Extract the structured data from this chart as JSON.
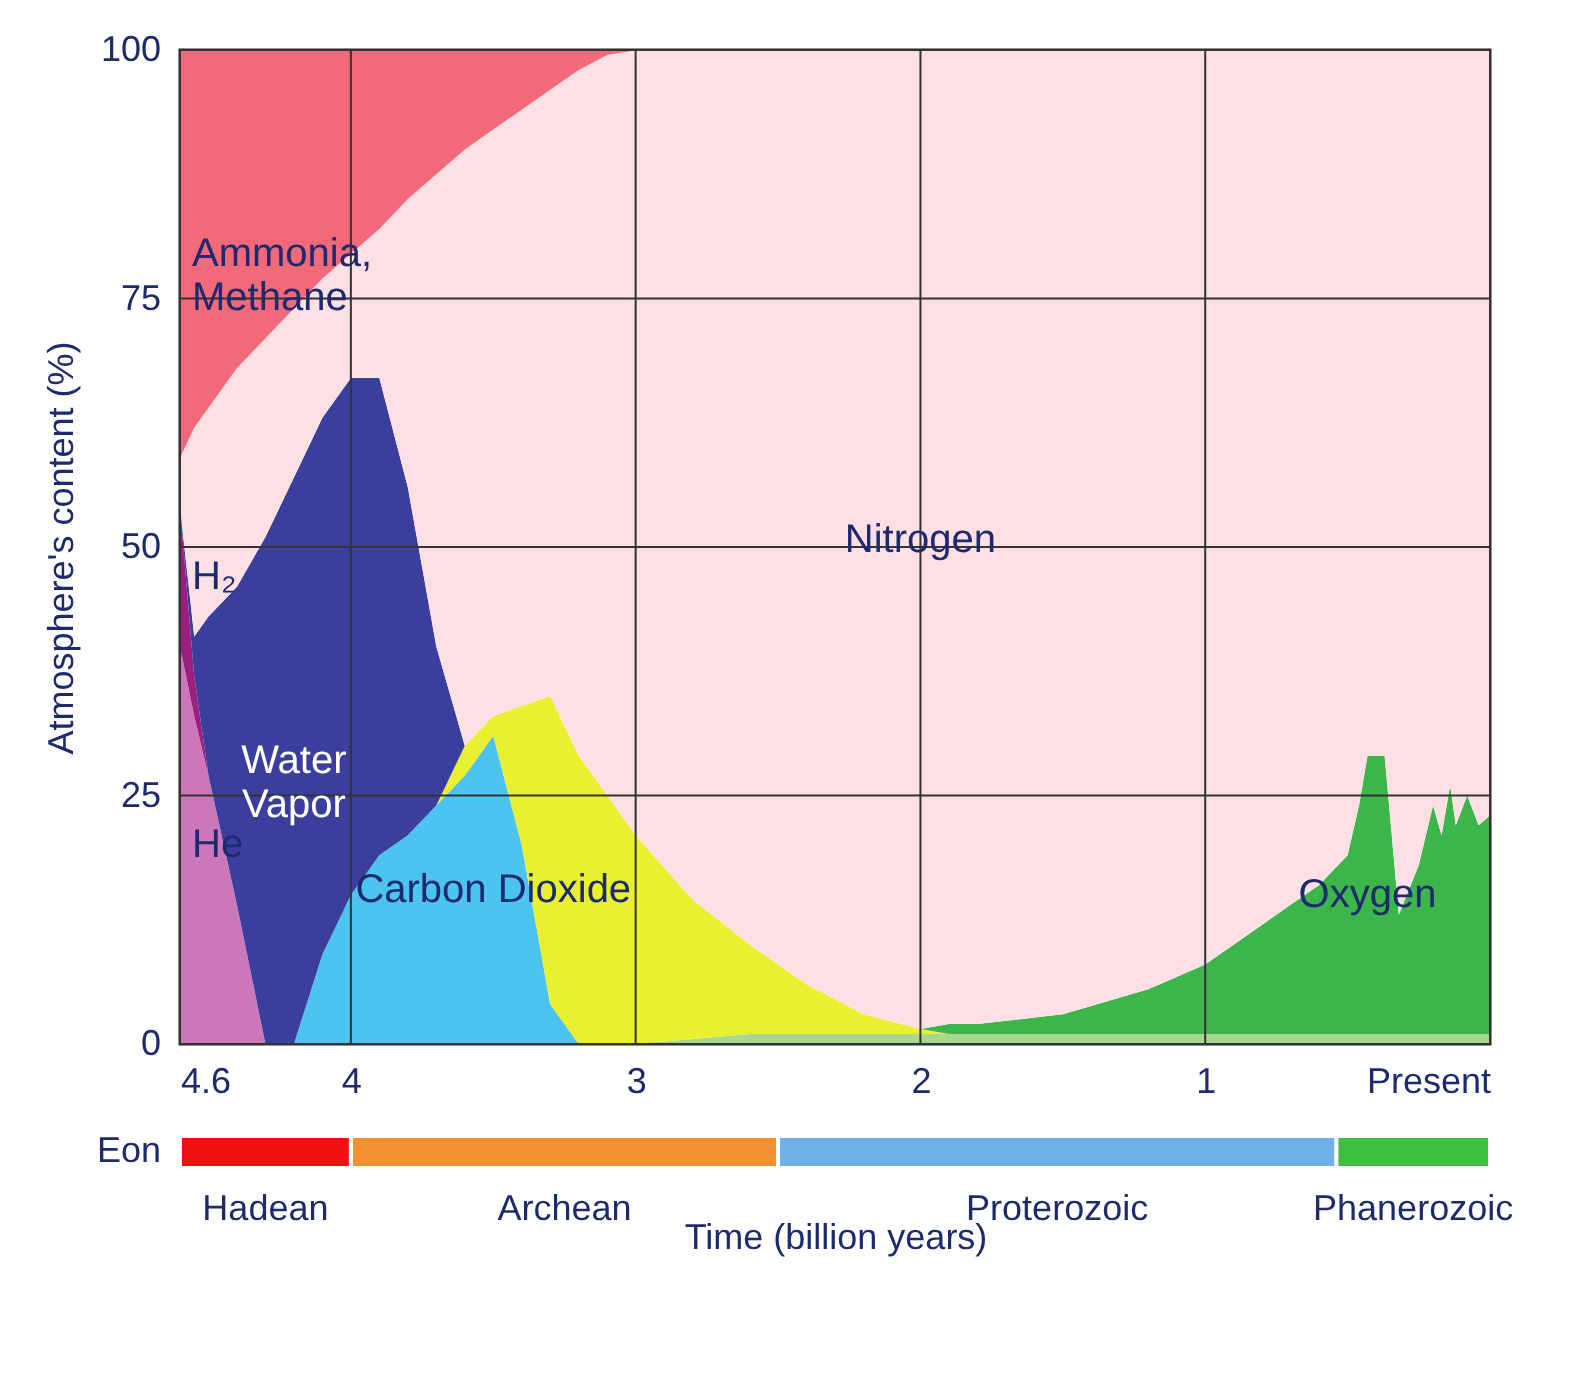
{
  "chart_data": [
    {
      "type": "area",
      "stacked": true,
      "ylabel": "Atmosphere's content (%)",
      "x": [
        4.6,
        4.55,
        4.5,
        4.4,
        4.3,
        4.2,
        4.1,
        4.0,
        3.9,
        3.8,
        3.7,
        3.6,
        3.5,
        3.4,
        3.3,
        3.2,
        3.1,
        3.0,
        2.8,
        2.6,
        2.4,
        2.2,
        2.0,
        1.9,
        1.8,
        1.5,
        1.2,
        1.0,
        0.8,
        0.7,
        0.6,
        0.5,
        0.46,
        0.43,
        0.37,
        0.32,
        0.25,
        0.2,
        0.17,
        0.14,
        0.12,
        0.08,
        0.04,
        0
      ],
      "series": [
        {
          "color": "#a8d890",
          "values": [
            null,
            null,
            null,
            null,
            null,
            null,
            null,
            null,
            null,
            null,
            null,
            null,
            null,
            null,
            null,
            null,
            null,
            0,
            0.5,
            1,
            1,
            1,
            1,
            1,
            1,
            1,
            1,
            1,
            1,
            1,
            1,
            1,
            1,
            1,
            1,
            1,
            1,
            1,
            1,
            1,
            1,
            1,
            1,
            1
          ]
        },
        {
          "name": "He",
          "color": "#cc77bb",
          "values": [
            40,
            33,
            27,
            14,
            0,
            null,
            null,
            null,
            null,
            null,
            null,
            null,
            null,
            null,
            null,
            null,
            null,
            null,
            null,
            null,
            null,
            null,
            null,
            null,
            null,
            null,
            null,
            null,
            null,
            null,
            null,
            null,
            null,
            null,
            null,
            null,
            null,
            null,
            null,
            null,
            null,
            null,
            null,
            null
          ]
        },
        {
          "name": "H₂",
          "color": "#9b1f7e",
          "values": [
            14,
            4,
            0,
            null,
            null,
            null,
            null,
            null,
            null,
            null,
            null,
            null,
            null,
            null,
            null,
            null,
            null,
            null,
            null,
            null,
            null,
            null,
            null,
            null,
            null,
            null,
            null,
            null,
            null,
            null,
            null,
            null,
            null,
            null,
            null,
            null,
            null,
            null,
            null,
            null,
            null,
            null,
            null,
            null
          ]
        },
        {
          "name": "Carbon Dioxide",
          "color": "#4cc4ef",
          "values": [
            null,
            null,
            null,
            null,
            null,
            0,
            9,
            15,
            19,
            21,
            24,
            27,
            31,
            20,
            4,
            0,
            null,
            null,
            null,
            null,
            null,
            null,
            null,
            null,
            null,
            null,
            null,
            null,
            null,
            null,
            null,
            null,
            null,
            null,
            null,
            null,
            null,
            null,
            null,
            null,
            null,
            null,
            null,
            null
          ]
        },
        {
          "color": "#e8f030",
          "values": [
            null,
            null,
            null,
            null,
            null,
            null,
            null,
            null,
            null,
            null,
            0,
            3,
            2,
            14,
            31,
            29,
            25,
            21,
            14,
            9,
            5,
            2,
            0.5,
            0,
            null,
            null,
            null,
            null,
            null,
            null,
            null,
            null,
            null,
            null,
            null,
            null,
            null,
            null,
            null,
            null,
            null,
            null,
            null,
            null
          ]
        },
        {
          "name": "Water\nVapor",
          "color": "#3a3f9e",
          "values": [
            0,
            4,
            16,
            32,
            51,
            57,
            54,
            52,
            48,
            35,
            16,
            0,
            null,
            null,
            null,
            null,
            null,
            null,
            null,
            null,
            null,
            null,
            null,
            null,
            null,
            null,
            null,
            null,
            null,
            null,
            null,
            null,
            null,
            null,
            null,
            null,
            null,
            null,
            null,
            null,
            null,
            null,
            null,
            null
          ]
        },
        {
          "name": "Oxygen",
          "color": "#3cb54a",
          "values": [
            null,
            null,
            null,
            null,
            null,
            null,
            null,
            null,
            null,
            null,
            null,
            null,
            null,
            null,
            null,
            null,
            null,
            null,
            null,
            null,
            null,
            null,
            0,
            1,
            1,
            2,
            4.5,
            7,
            11,
            13,
            15,
            18,
            23,
            28,
            28,
            12,
            17,
            23,
            20,
            25,
            21,
            24,
            21,
            22
          ]
        },
        {
          "name": "Nitrogen",
          "color": "#fde0e4",
          "values": [
            5,
            21,
            21,
            22,
            20,
            17,
            14,
            12.5,
            15,
            29,
            47.5,
            60,
            59,
            60,
            61,
            69,
            74.5,
            79,
            85.5,
            90,
            94,
            97,
            98.5,
            98,
            98,
            97,
            94.5,
            92,
            88,
            86,
            84,
            81,
            76,
            71,
            71,
            87,
            82,
            76,
            79,
            74,
            78,
            75,
            78,
            77
          ]
        },
        {
          "name": "Ammonia,\nMethane",
          "color": "#f26a7a",
          "values": [
            41,
            38,
            36,
            32,
            29,
            26,
            23,
            20.5,
            18,
            15,
            12.5,
            10,
            8,
            6,
            4,
            2,
            0.5,
            0,
            null,
            null,
            null,
            null,
            null,
            null,
            null,
            null,
            null,
            null,
            null,
            null,
            null,
            null,
            null,
            null,
            null,
            null,
            null,
            null,
            null,
            null,
            null,
            null,
            null,
            null
          ]
        }
      ],
      "xlim": [
        4.6,
        0
      ],
      "xticks": [
        4.6,
        4,
        3,
        2,
        1,
        {
          "value": 0,
          "label": "Present"
        }
      ],
      "ylim": [
        0,
        100
      ],
      "yticks": [
        0,
        25,
        50,
        75,
        100
      ],
      "grid": true,
      "legend": false
    },
    {
      "type": "bar",
      "orientation": "horizontal",
      "stacked": true,
      "xlabel": "Time (billion years)",
      "categories": [
        "Eon"
      ],
      "series": [
        {
          "name": "Phanerozoic",
          "color": "#40c040",
          "values": [
            0.54
          ]
        },
        {
          "name": "Proterozoic",
          "color": "#70b0e8",
          "values": [
            1.96
          ]
        },
        {
          "name": "Archean",
          "color": "#f59030",
          "values": [
            1.5
          ]
        },
        {
          "name": "Hadean",
          "color": "#f01010",
          "values": [
            0.6
          ]
        }
      ],
      "xlim": [
        4.6,
        0
      ],
      "tick_labels": "y",
      "legend": false
    }
  ]
}
